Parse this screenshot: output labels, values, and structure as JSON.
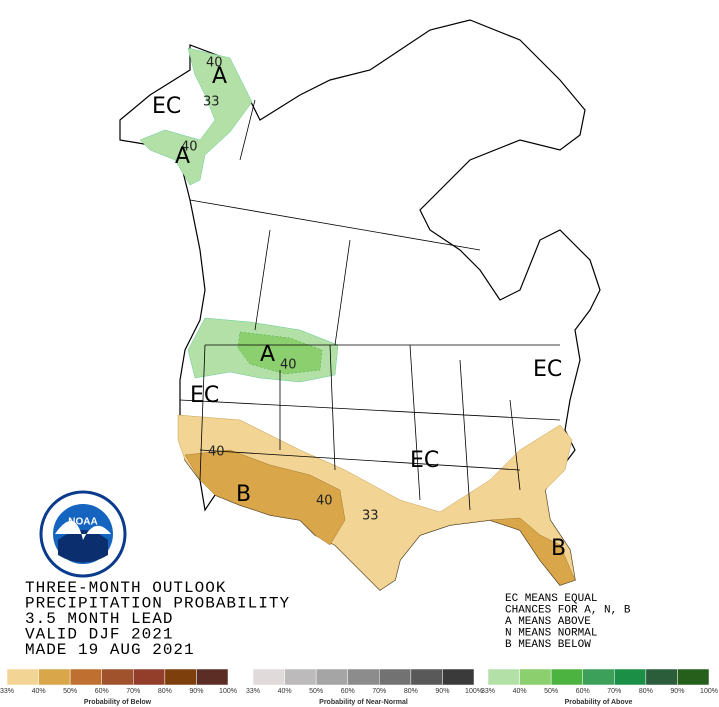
{
  "map_labels": [
    "40",
    "A",
    "EC",
    "33",
    "40",
    "A",
    "A",
    "40",
    "EC",
    "40",
    "B",
    "40",
    "33",
    "EC",
    "EC",
    "B"
  ],
  "title_lines": [
    "THREE-MONTH OUTLOOK",
    "PRECIPITATION PROBABILITY",
    "3.5 MONTH LEAD",
    "VALID DJF 2021",
    "MADE 19 AUG 2021"
  ],
  "notes": [
    "EC MEANS EQUAL",
    "CHANCES FOR A, N, B",
    "A MEANS ABOVE",
    "N MEANS NORMAL",
    "B MEANS BELOW"
  ],
  "logo": {
    "text": "NOAA"
  },
  "legends": [
    {
      "caption": "Probability of Below",
      "colors": [
        "#f2d495",
        "#d9a74a",
        "#bf7030",
        "#a0522d",
        "#933e2a",
        "#7d400d",
        "#5c2d24"
      ],
      "ticks": [
        "33%",
        "40%",
        "50%",
        "60%",
        "70%",
        "80%",
        "90%",
        "100%"
      ]
    },
    {
      "caption": "Probability of Near-Normal",
      "colors": [
        "#e0dadb",
        "#bdbabb",
        "#a5a5a5",
        "#8c8c8c",
        "#727272",
        "#595959",
        "#3a3a3a"
      ],
      "ticks": [
        "33%",
        "40%",
        "50%",
        "60%",
        "70%",
        "80%",
        "90%",
        "100%"
      ]
    },
    {
      "caption": "Probability of Above",
      "colors": [
        "#b3e0a6",
        "#8ccf6e",
        "#4db340",
        "#3c9f5a",
        "#1c8f47",
        "#2b5d3a",
        "#265f1c"
      ],
      "ticks": [
        "33%",
        "40%",
        "50%",
        "60%",
        "70%",
        "80%",
        "90%",
        "100%"
      ]
    }
  ]
}
